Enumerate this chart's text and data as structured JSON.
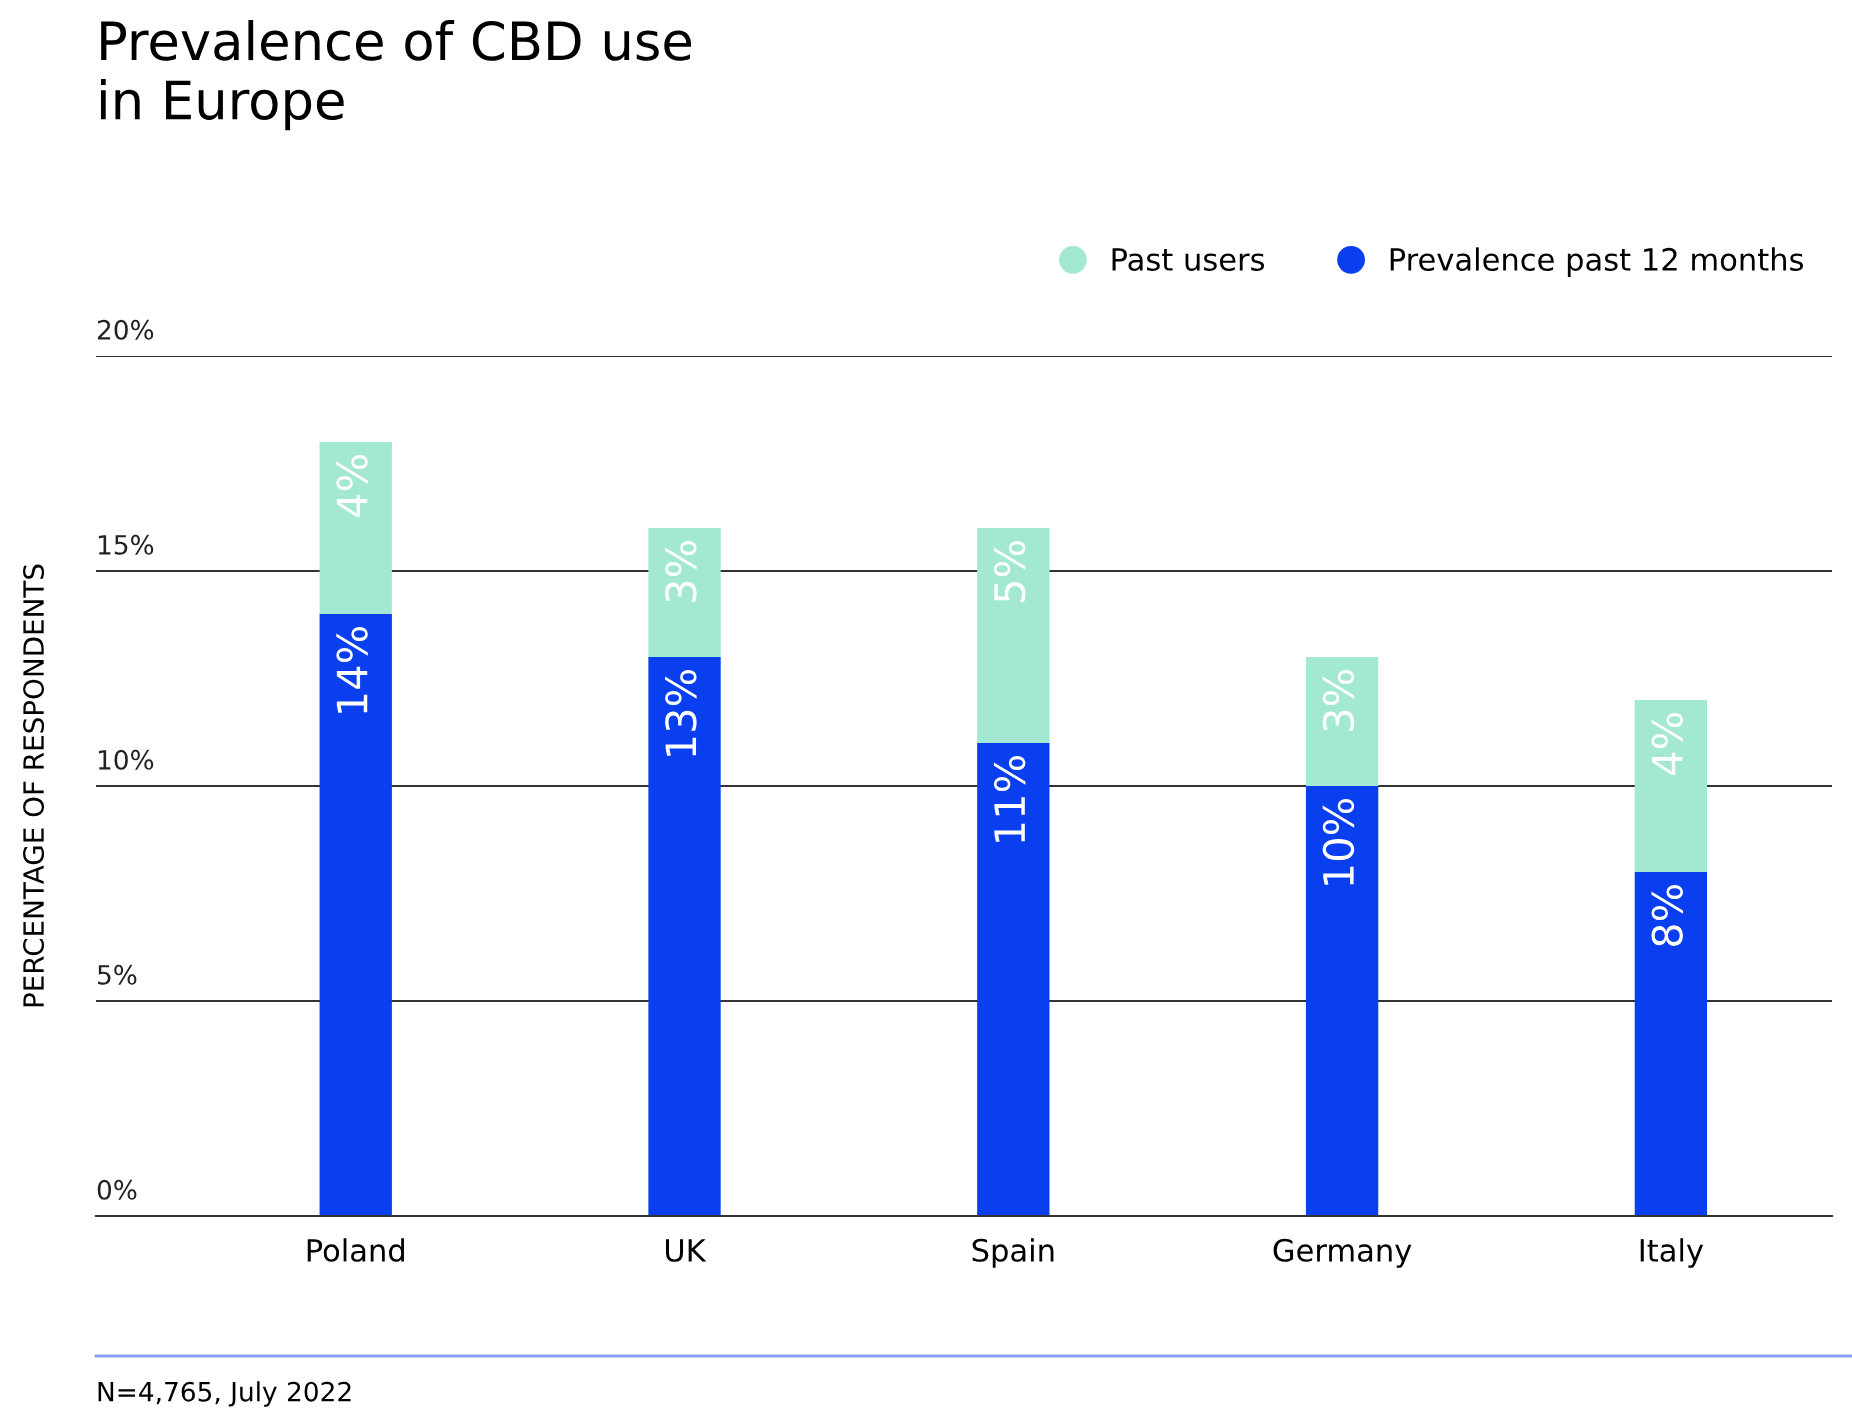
{
  "chart_data": {
    "type": "bar",
    "title": "Prevalence of CBD use\nin Europe",
    "ylabel": "PERCENTAGE OF RESPONDENTS",
    "annotations": [
      "N=4,765, July 2022"
    ],
    "categories": [
      "Poland",
      "UK",
      "Spain",
      "Germany",
      "Italy"
    ],
    "stacked": true,
    "series": [
      {
        "name": "Prevalence past 12 months",
        "color": "#0a3ff0",
        "values": [
          14,
          13,
          11,
          10,
          8
        ],
        "value_labels": [
          "14%",
          "13%",
          "11%",
          "10%",
          "8%"
        ]
      },
      {
        "name": "Past users",
        "color": "#a3e8d2",
        "values": [
          4,
          3,
          5,
          3,
          4
        ],
        "value_labels": [
          "4%",
          "3%",
          "5%",
          "3%",
          "4%"
        ]
      }
    ],
    "ylim": [
      0,
      20
    ],
    "yticks": [
      {
        "value": 0,
        "label": "0%"
      },
      {
        "value": 5,
        "label": "5%"
      },
      {
        "value": 10,
        "label": "10%"
      },
      {
        "value": 15,
        "label": "15%"
      },
      {
        "value": 20,
        "label": "20%"
      }
    ],
    "grid": "y",
    "legend": "top right",
    "marker": "circle"
  }
}
